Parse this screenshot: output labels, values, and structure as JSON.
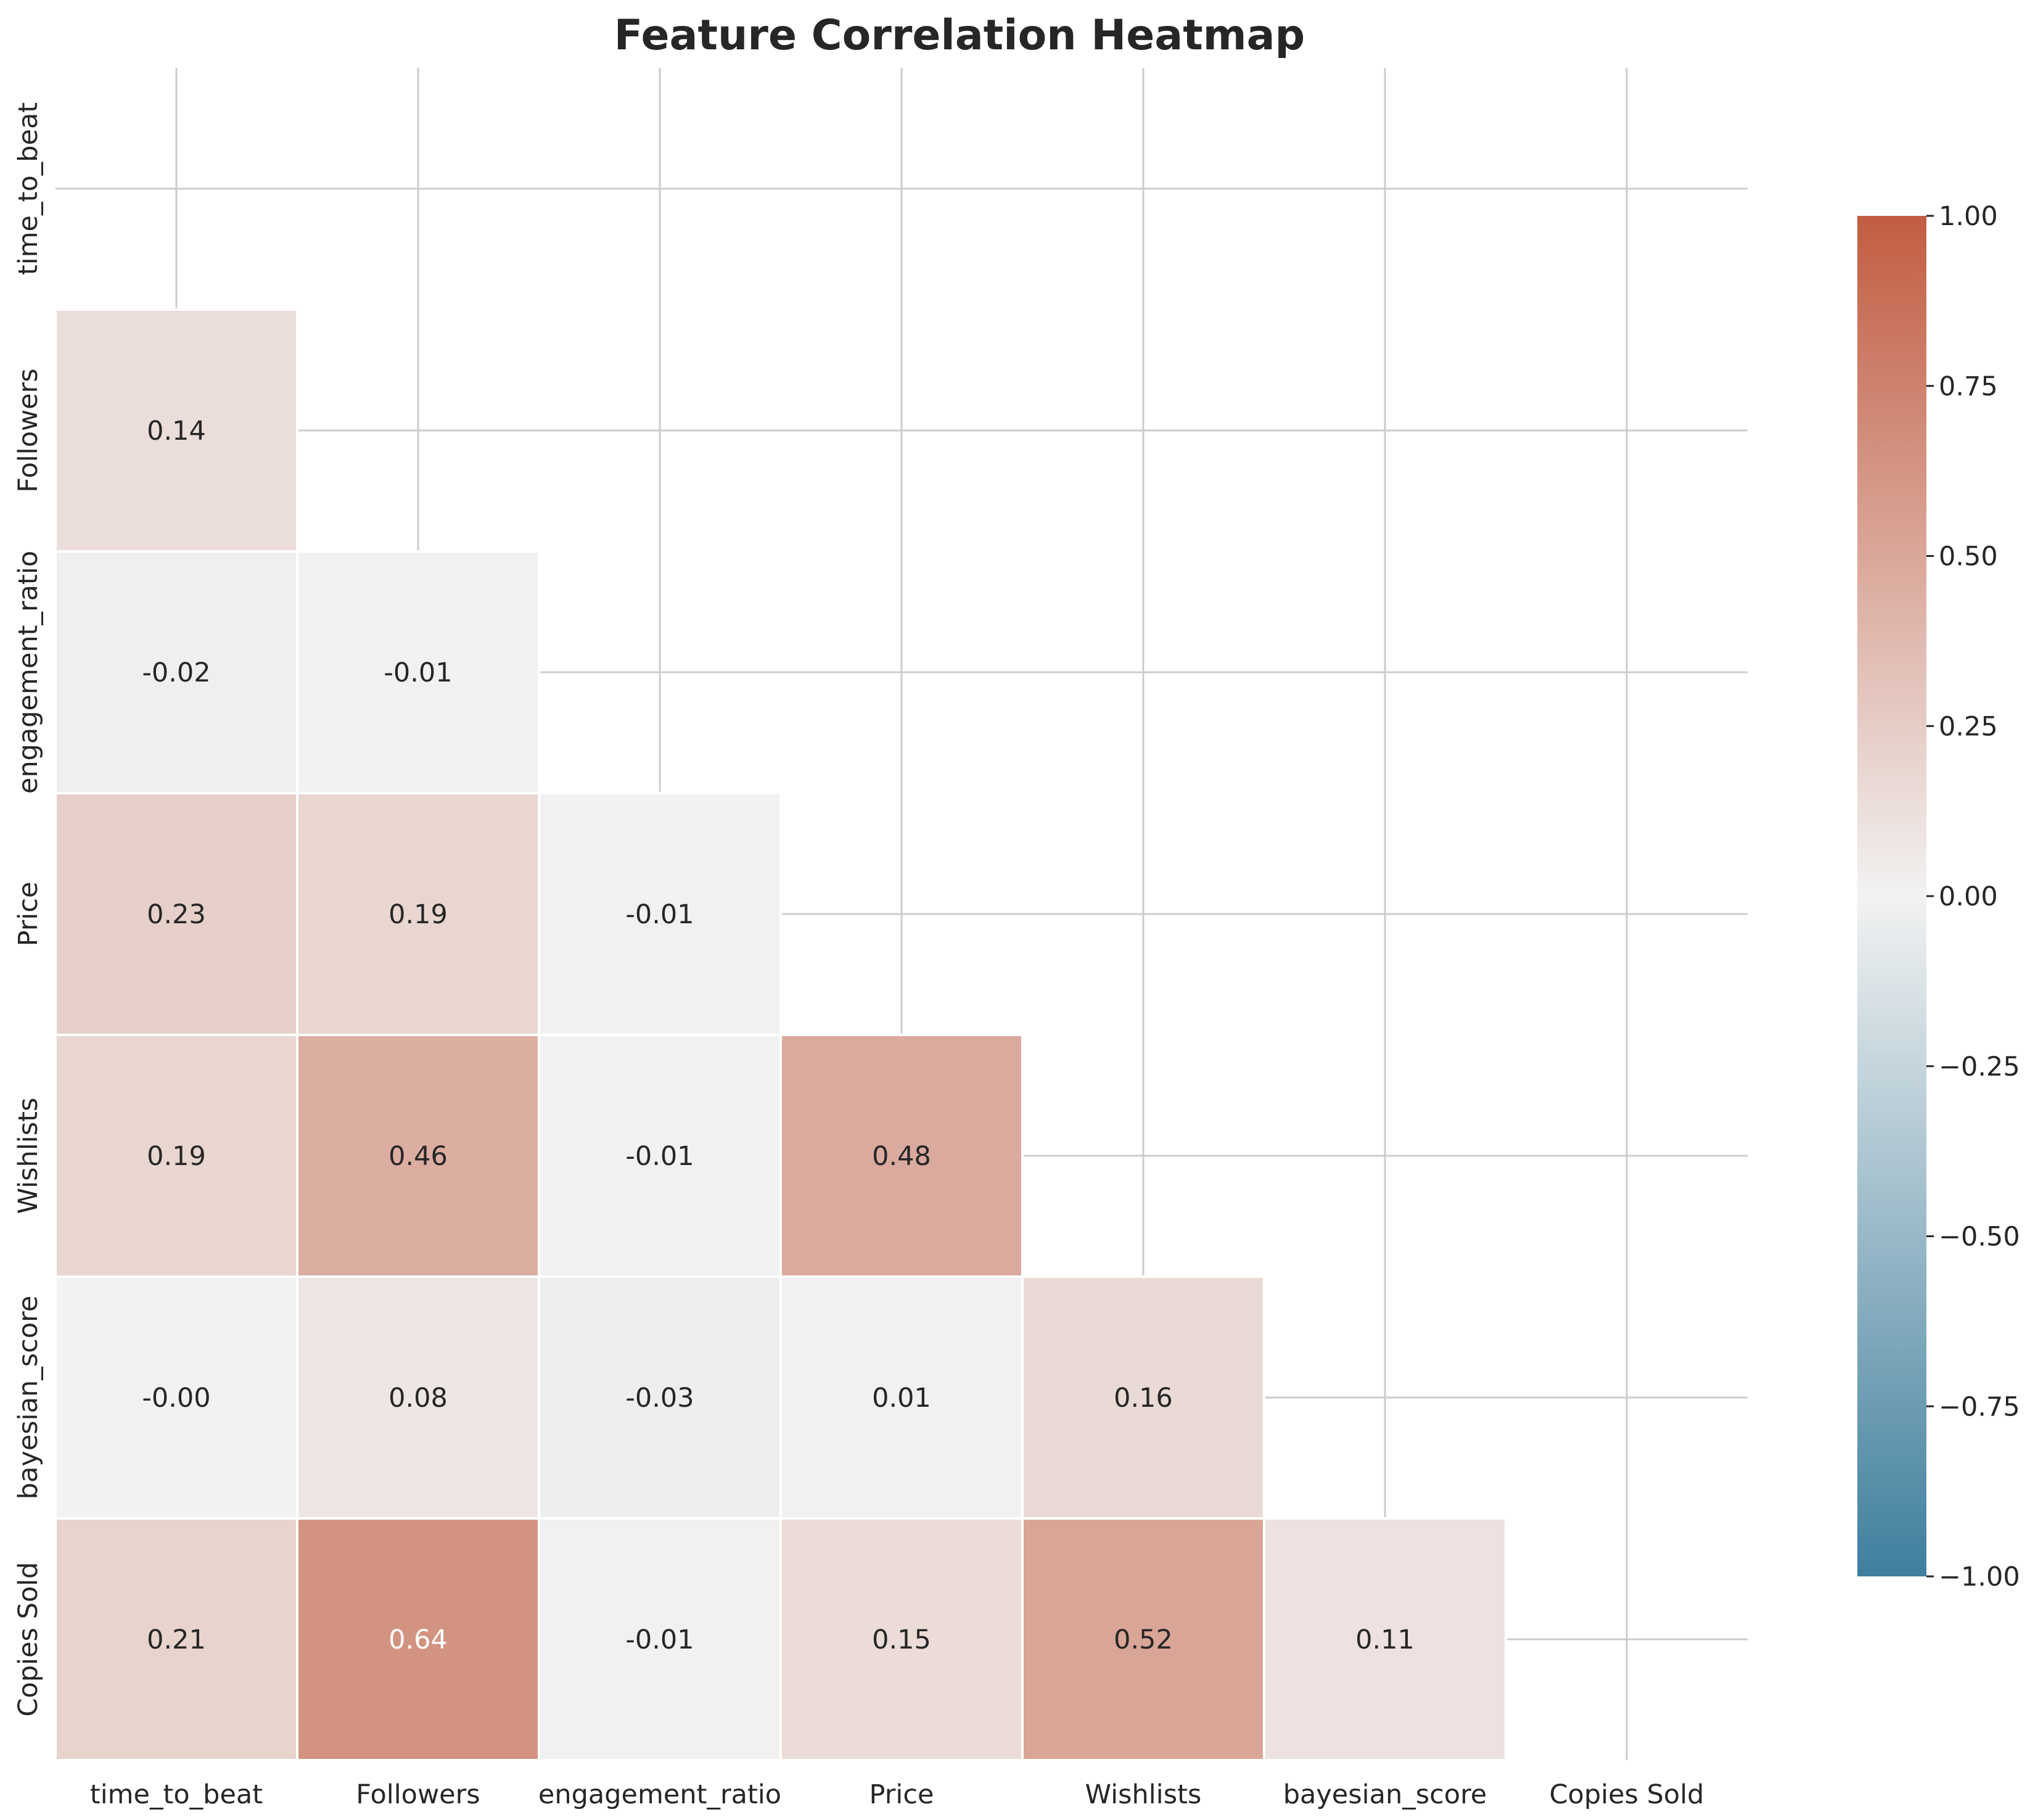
{
  "chart_data": {
    "type": "heatmap",
    "title": "Feature Correlation Heatmap",
    "variables": [
      "time_to_beat",
      "Followers",
      "engagement_ratio",
      "Price",
      "Wishlists",
      "bayesian_score",
      "Copies Sold"
    ],
    "mask": "upper-triangle-including-diagonal",
    "matrix": [
      [
        null,
        null,
        null,
        null,
        null,
        null,
        null
      ],
      [
        0.14,
        null,
        null,
        null,
        null,
        null,
        null
      ],
      [
        -0.02,
        -0.01,
        null,
        null,
        null,
        null,
        null
      ],
      [
        0.23,
        0.19,
        -0.01,
        null,
        null,
        null,
        null
      ],
      [
        0.19,
        0.46,
        -0.01,
        0.48,
        null,
        null,
        null
      ],
      [
        -0.0,
        0.08,
        -0.03,
        0.01,
        0.16,
        null,
        null
      ],
      [
        0.21,
        0.64,
        -0.01,
        0.15,
        0.52,
        0.11,
        null
      ]
    ],
    "labels": [
      [
        null,
        null,
        null,
        null,
        null,
        null,
        null
      ],
      [
        "0.14",
        null,
        null,
        null,
        null,
        null,
        null
      ],
      [
        "-0.02",
        "-0.01",
        null,
        null,
        null,
        null,
        null
      ],
      [
        "0.23",
        "0.19",
        "-0.01",
        null,
        null,
        null,
        null
      ],
      [
        "0.19",
        "0.46",
        "-0.01",
        "0.48",
        null,
        null,
        null
      ],
      [
        "-0.00",
        "0.08",
        "-0.03",
        "0.01",
        "0.16",
        null,
        null
      ],
      [
        "0.21",
        "0.64",
        "-0.01",
        "0.15",
        "0.52",
        "0.11",
        null
      ]
    ],
    "colorbar": {
      "vmin": -1.0,
      "vmax": 1.0,
      "ticks": [
        1.0,
        0.75,
        0.5,
        0.25,
        0.0,
        -0.25,
        -0.5,
        -0.75,
        -1.0
      ],
      "tick_labels": [
        "1.00",
        "0.75",
        "0.50",
        "0.25",
        "0.00",
        "−0.25",
        "−0.50",
        "−0.75",
        "−1.00"
      ],
      "colors": {
        "low": "#3f7f9d",
        "mid": "#f2f2f2",
        "high": "#c25d42"
      }
    },
    "grid": true
  }
}
